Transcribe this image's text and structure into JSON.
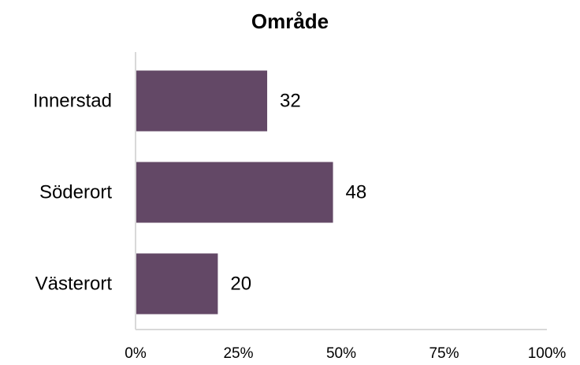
{
  "chart_data": {
    "type": "bar",
    "orientation": "horizontal",
    "title": "Område",
    "categories": [
      "Innerstad",
      "Söderort",
      "Västerort"
    ],
    "values": [
      32,
      48,
      20
    ],
    "data_labels": [
      "32",
      "48",
      "20"
    ],
    "x_ticks": [
      "0%",
      "25%",
      "50%",
      "75%",
      "100%"
    ],
    "x_tick_values": [
      0,
      25,
      50,
      75,
      100
    ],
    "xlim": [
      0,
      100
    ],
    "xlabel": "",
    "ylabel": "",
    "grid": false,
    "legend": "none",
    "bar_color": "#634866",
    "axis_color": "#d9d9d9"
  }
}
